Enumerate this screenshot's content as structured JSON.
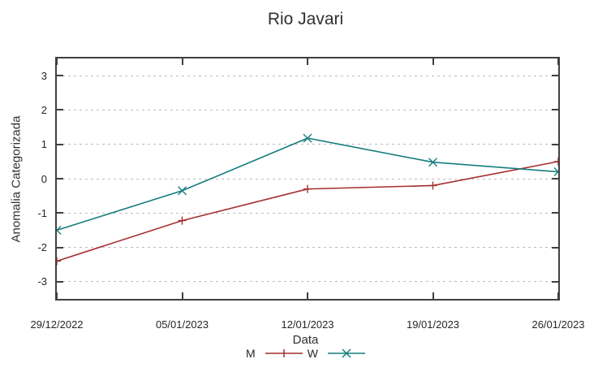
{
  "chart": {
    "colors": {
      "series_m": "#a62e2e",
      "series_w": "#177d7d",
      "grid": "#bcbcbc",
      "border": "#404040",
      "text": "#262626"
    }
  },
  "chart_data": {
    "type": "line",
    "title": "Rio Javari",
    "xlabel": "Data",
    "ylabel": "Anomalia Categorizada",
    "x": [
      "29/12/2022",
      "05/01/2023",
      "12/01/2023",
      "19/01/2023",
      "26/01/2023"
    ],
    "series": [
      {
        "name": "M",
        "color": "#a62e2e",
        "marker": "plus",
        "values": [
          -2.4,
          -1.22,
          -0.3,
          -0.2,
          0.5
        ]
      },
      {
        "name": "W",
        "color": "#177d7d",
        "marker": "cross",
        "values": [
          -1.5,
          -0.35,
          1.18,
          0.48,
          0.2
        ]
      }
    ],
    "ylim": [
      -3.5,
      3.5
    ],
    "yticks": [
      3,
      2,
      1,
      0,
      -1,
      -2,
      -3
    ],
    "grid": "horizontal-dotted",
    "legend_position": "bottom-center"
  }
}
